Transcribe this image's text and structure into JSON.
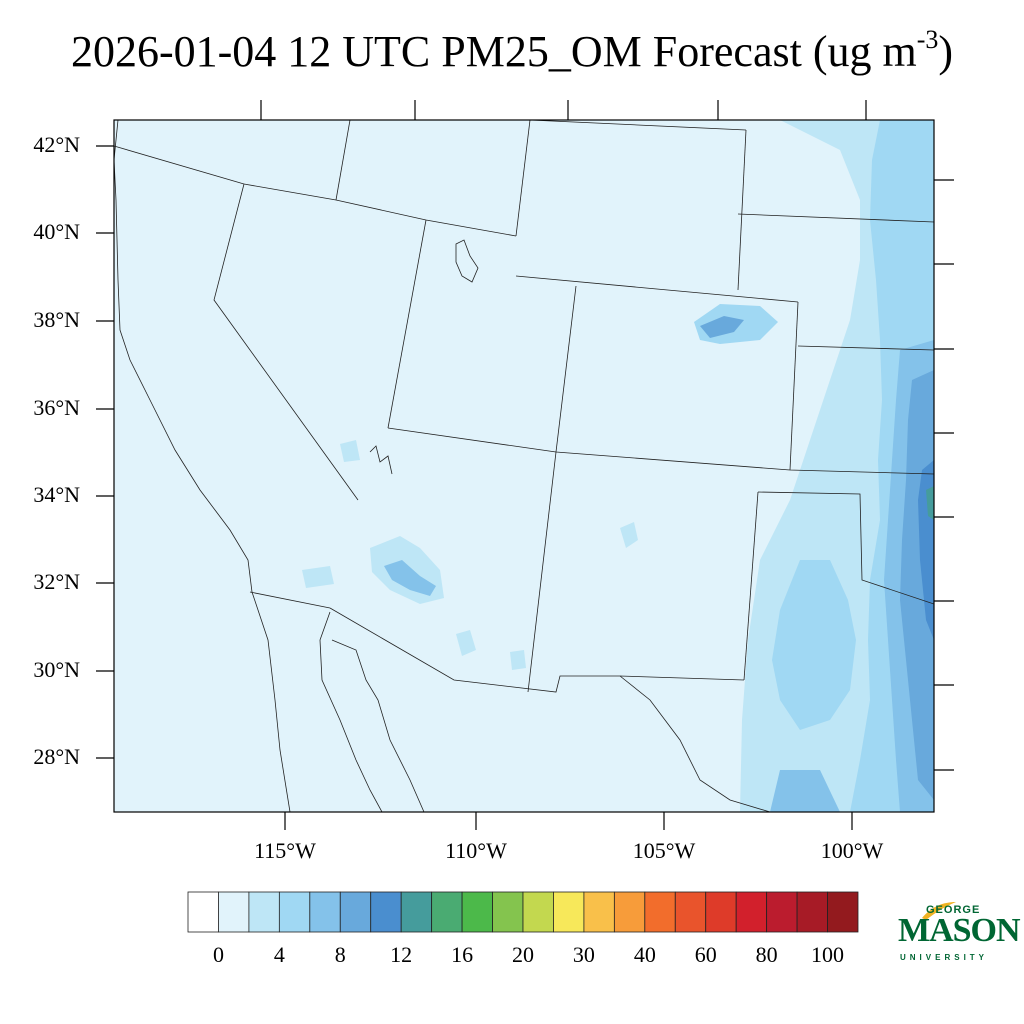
{
  "title": {
    "text": "2026-01-04 12 UTC PM25_OM Forecast (ug m",
    "exponent": "-3",
    "close": ")"
  },
  "map": {
    "type": "contour",
    "lat_labels": [
      "42°N",
      "40°N",
      "38°N",
      "36°N",
      "34°N",
      "32°N",
      "30°N",
      "28°N"
    ],
    "lon_labels": [
      "115°W",
      "110°W",
      "105°W",
      "100°W"
    ]
  },
  "colorbar": {
    "labels": [
      "0",
      "4",
      "8",
      "12",
      "16",
      "20",
      "30",
      "40",
      "60",
      "80",
      "100"
    ],
    "colors": [
      "#ffffff",
      "#e1f3fb",
      "#bee6f6",
      "#a0d8f3",
      "#84c2ea",
      "#68a9dc",
      "#4a8ecf",
      "#459c9c",
      "#4aab72",
      "#4cb94a",
      "#84c44e",
      "#c3d84f",
      "#f7e85a",
      "#f9c04a",
      "#f79c3a",
      "#f26d2c",
      "#e9542c",
      "#de3b29",
      "#d2202c",
      "#bb1c2e",
      "#a71b26",
      "#931a1e"
    ]
  },
  "logo": {
    "line1": "GEORGE",
    "line2": "MASON",
    "line3": "UNIVERSITY",
    "color": "#006633",
    "accent": "#f0b323"
  }
}
